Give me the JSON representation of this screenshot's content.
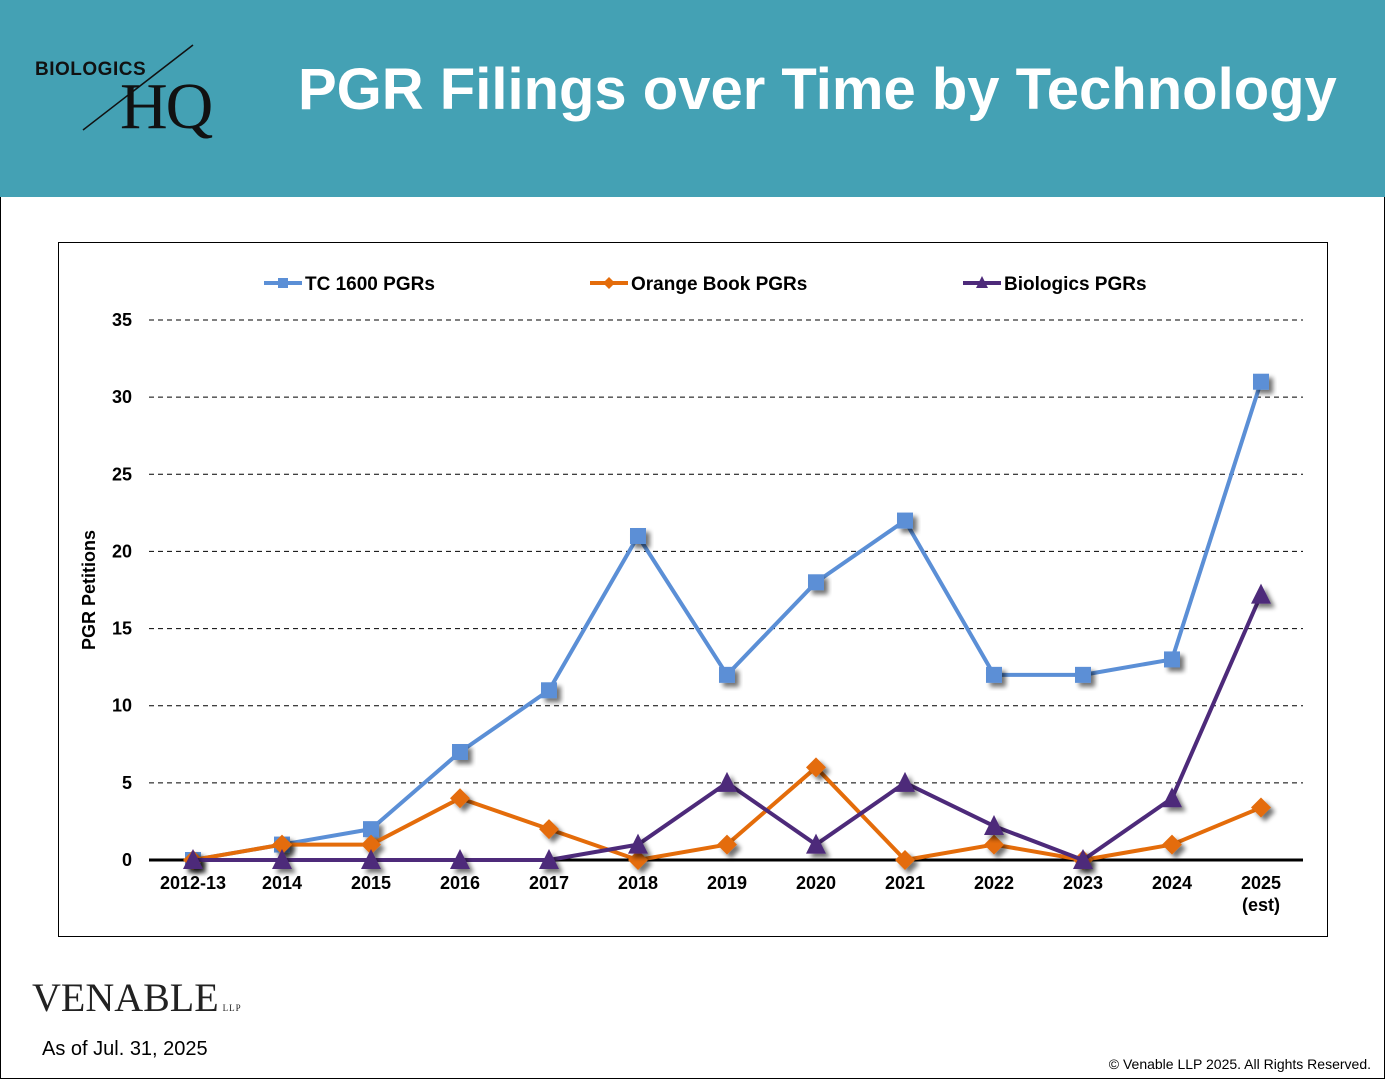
{
  "header": {
    "title": "PGR Filings over Time by Technology",
    "logo_top": "BIOLOGICS",
    "logo_hq": "HQ",
    "background": "#44a1b4"
  },
  "footer": {
    "brand": "VENABLE",
    "brand_suffix": "LLP",
    "as_of": "As of Jul. 31, 2025",
    "copyright": "© Venable LLP 2025. All Rights Reserved."
  },
  "chart_data": {
    "type": "line",
    "title": "",
    "xlabel": "",
    "ylabel": "PGR Petitions",
    "ylim": [
      0,
      35
    ],
    "yticks": [
      0,
      5,
      10,
      15,
      20,
      25,
      30,
      35
    ],
    "grid": "horizontal dashed",
    "legend_position": "top",
    "categories": [
      "2012-13",
      "2014",
      "2015",
      "2016",
      "2017",
      "2018",
      "2019",
      "2020",
      "2021",
      "2022",
      "2023",
      "2024",
      "2025 (est)"
    ],
    "category_lines": [
      [
        "2012-13"
      ],
      [
        "2014"
      ],
      [
        "2015"
      ],
      [
        "2016"
      ],
      [
        "2017"
      ],
      [
        "2018"
      ],
      [
        "2019"
      ],
      [
        "2020"
      ],
      [
        "2021"
      ],
      [
        "2022"
      ],
      [
        "2023"
      ],
      [
        "2024"
      ],
      [
        "2025",
        "(est)"
      ]
    ],
    "series": [
      {
        "name": "TC 1600 PGRs",
        "marker": "square",
        "color": "#5b8fd6",
        "values": [
          0,
          1,
          2,
          7,
          11,
          21,
          12,
          18,
          22,
          12,
          12,
          13,
          31
        ]
      },
      {
        "name": "Orange Book PGRs",
        "marker": "diamond",
        "color": "#e46c0a",
        "values": [
          0,
          1,
          1,
          4,
          2,
          0,
          1,
          6,
          0,
          1,
          0,
          1,
          3.4
        ]
      },
      {
        "name": "Biologics PGRs",
        "marker": "triangle",
        "color": "#4d2a7a",
        "values": [
          0,
          0,
          0,
          0,
          0,
          1,
          5,
          1,
          5,
          2.2,
          0,
          4,
          17.2
        ]
      }
    ]
  }
}
